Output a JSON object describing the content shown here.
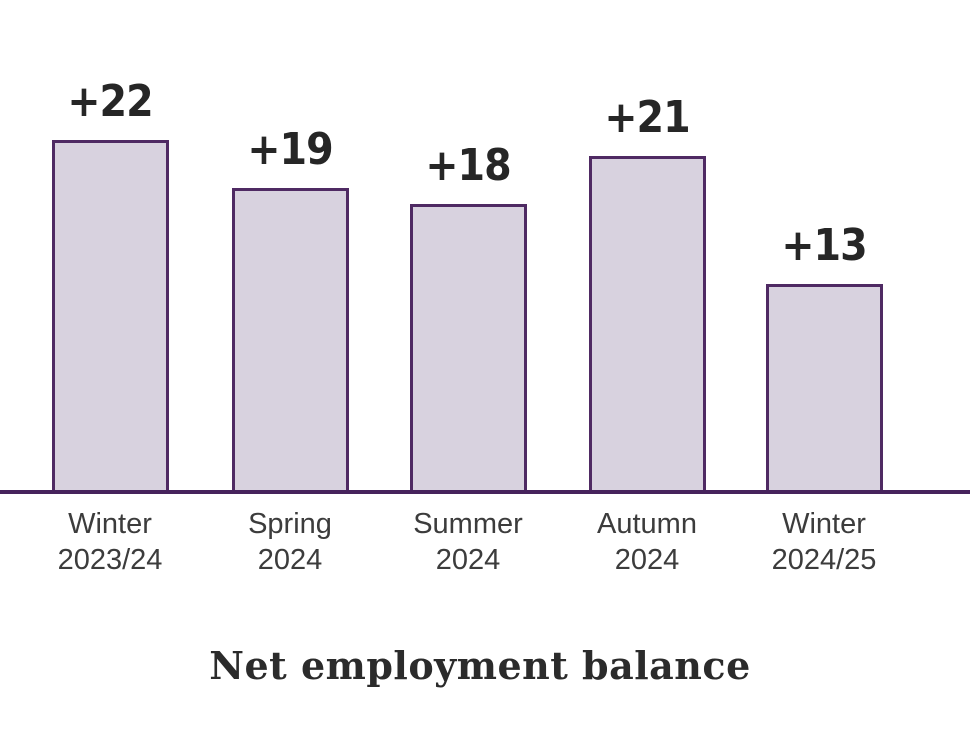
{
  "chart_data": {
    "type": "bar",
    "title": "Net employment balance",
    "categories": [
      "Winter 2023/24",
      "Spring 2024",
      "Summer 2024",
      "Autumn 2024",
      "Winter 2024/25"
    ],
    "values": [
      22,
      19,
      18,
      21,
      13
    ],
    "value_labels": [
      "+22",
      "+19",
      "+18",
      "+21",
      "+13"
    ],
    "xlabel": "",
    "ylabel": "",
    "ylim": [
      0,
      24
    ],
    "grid": false,
    "legend": "none",
    "colors": {
      "bar_fill": "#d8d2df",
      "bar_border": "#4f2a63",
      "axis_line": "#46235c",
      "value_text": "#262626",
      "category_text": "#3c3c3c",
      "title_text": "#2b2b2b"
    }
  }
}
